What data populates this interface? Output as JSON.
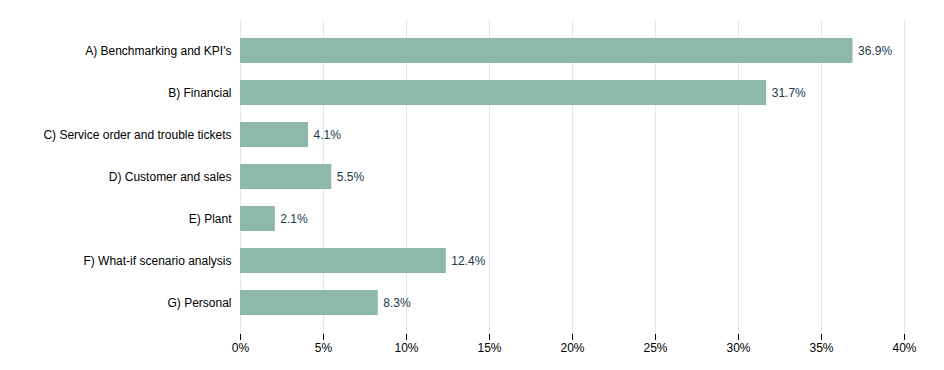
{
  "chart_data": {
    "type": "bar",
    "orientation": "horizontal",
    "categories": [
      "A) Benchmarking and KPI's",
      "B) Financial",
      "C) Service order and trouble tickets",
      "D) Customer and sales",
      "E) Plant",
      "F) What-if scenario analysis",
      "G) Personal"
    ],
    "values": [
      36.9,
      31.7,
      4.1,
      5.5,
      2.1,
      12.4,
      8.3
    ],
    "value_labels": [
      "36.9%",
      "31.7%",
      "4.1%",
      "5.5%",
      "2.1%",
      "12.4%",
      "8.3%"
    ],
    "data_labels": true,
    "color": "#8fb8ad",
    "xlim": [
      0,
      40
    ],
    "xticks": [
      {
        "value": 0,
        "label": "0%"
      },
      {
        "value": 5,
        "label": "5%"
      },
      {
        "value": 10,
        "label": "10%"
      },
      {
        "value": 15,
        "label": "15%"
      },
      {
        "value": 20,
        "label": "20%"
      },
      {
        "value": 25,
        "label": "25%"
      },
      {
        "value": 30,
        "label": "30%"
      },
      {
        "value": 35,
        "label": "35%"
      },
      {
        "value": 40,
        "label": "40%"
      }
    ],
    "grid": true
  }
}
